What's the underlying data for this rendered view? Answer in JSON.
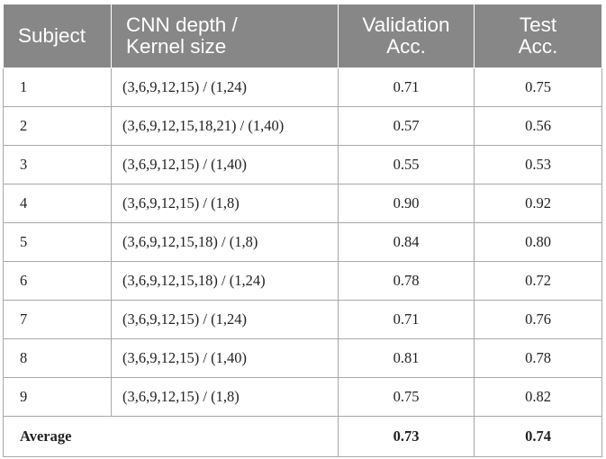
{
  "table": {
    "headers": [
      [
        "Subject"
      ],
      [
        "CNN depth /",
        "Kernel size"
      ],
      [
        "Validation",
        "Acc."
      ],
      [
        "Test",
        "Acc."
      ]
    ],
    "rows": [
      {
        "subject": "1",
        "config": "(3,6,9,12,15) / (1,24)",
        "validation": "0.71",
        "test": "0.75"
      },
      {
        "subject": "2",
        "config": "(3,6,9,12,15,18,21) / (1,40)",
        "validation": "0.57",
        "test": "0.56"
      },
      {
        "subject": "3",
        "config": "(3,6,9,12,15) / (1,40)",
        "validation": "0.55",
        "test": "0.53"
      },
      {
        "subject": "4",
        "config": "(3,6,9,12,15) / (1,8)",
        "validation": "0.90",
        "test": "0.92"
      },
      {
        "subject": "5",
        "config": "(3,6,9,12,15,18) / (1,8)",
        "validation": "0.84",
        "test": "0.80"
      },
      {
        "subject": "6",
        "config": "(3,6,9,12,15,18) / (1,24)",
        "validation": "0.78",
        "test": "0.72"
      },
      {
        "subject": "7",
        "config": "(3,6,9,12,15) / (1,24)",
        "validation": "0.71",
        "test": "0.76"
      },
      {
        "subject": "8",
        "config": "(3,6,9,12,15) / (1,40)",
        "validation": "0.81",
        "test": "0.78"
      },
      {
        "subject": "9",
        "config": "(3,6,9,12,15) / (1,8)",
        "validation": "0.75",
        "test": "0.82"
      }
    ],
    "average": {
      "label": "Average",
      "validation": "0.73",
      "test": "0.74"
    }
  }
}
